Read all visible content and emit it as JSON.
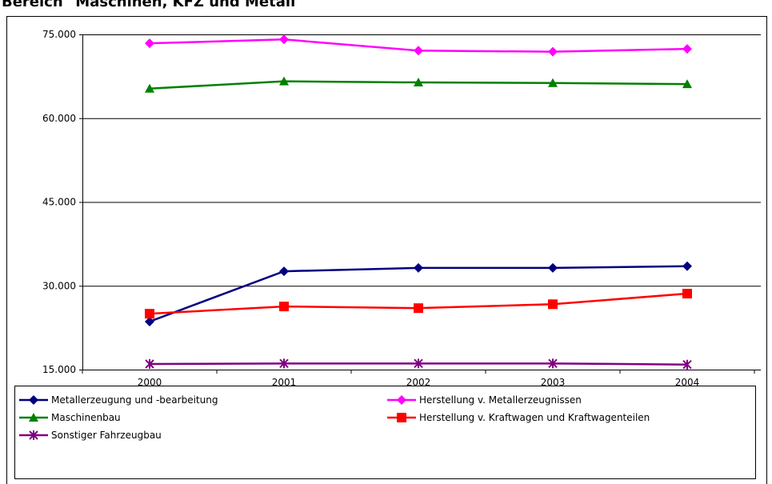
{
  "chart_data": {
    "type": "line",
    "title": "Bereich \"Maschinen, KFZ und Metall\"",
    "categories": [
      "2000",
      "2001",
      "2002",
      "2003",
      "2004"
    ],
    "series": [
      {
        "name": "Metallerzeugung und -bearbeitung",
        "color": "#000080",
        "marker": "diamond",
        "values": [
          23600,
          32600,
          33200,
          33200,
          33500
        ]
      },
      {
        "name": "Herstellung v. Metallerzeugnissen",
        "color": "#ff00ff",
        "marker": "diamond",
        "values": [
          73400,
          74100,
          72100,
          71900,
          72400
        ]
      },
      {
        "name": "Maschinenbau",
        "color": "#008000",
        "marker": "triangle",
        "values": [
          65300,
          66600,
          66400,
          66300,
          66100
        ]
      },
      {
        "name": "Herstellung v. Kraftwagen und Kraftwagenteilen",
        "color": "#ff0000",
        "marker": "square",
        "values": [
          25000,
          26300,
          26000,
          26700,
          28600
        ]
      },
      {
        "name": "Sonstiger Fahrzeugbau",
        "color": "#800080",
        "marker": "asterisk",
        "values": [
          16000,
          16100,
          16100,
          16100,
          15900
        ]
      }
    ],
    "ylim": [
      15000,
      75000
    ],
    "yticks": [
      {
        "value": 15000,
        "label": "15.000"
      },
      {
        "value": 30000,
        "label": "30.000"
      },
      {
        "value": 45000,
        "label": "45.000"
      },
      {
        "value": 60000,
        "label": "60.000"
      },
      {
        "value": 75000,
        "label": "75.000"
      }
    ],
    "grid": true,
    "legend": "bottom"
  }
}
